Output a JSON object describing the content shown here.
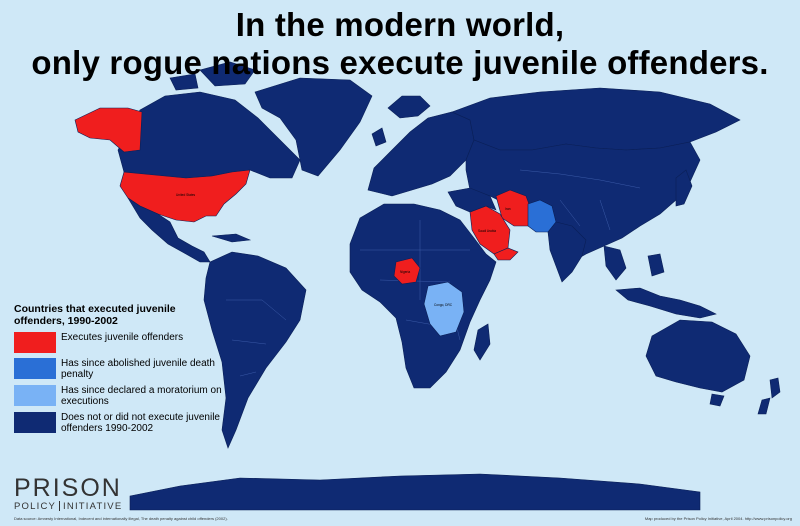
{
  "title": {
    "line1": "In the modern world,",
    "line2": "only rogue nations execute juvenile offenders."
  },
  "colors": {
    "ocean": "#cfe8f7",
    "executes": "#f01e1e",
    "abolished": "#2a6fd6",
    "moratorium": "#79b2f5",
    "not_executing": "#0f2a73"
  },
  "map_labels": {
    "usa": "United States",
    "iran": "Iran",
    "saudi": "Saudi Arabia",
    "nigeria": "Nigeria",
    "drc": "Congo, DRC"
  },
  "legend": {
    "title": "Countries that executed juvenile offenders, 1990-2002",
    "items": [
      {
        "label": "Executes juvenile offenders",
        "color": "#f01e1e"
      },
      {
        "label": "Has since abolished juvenile death penalty",
        "color": "#2a6fd6"
      },
      {
        "label": "Has since declared a moratorium on executions",
        "color": "#79b2f5"
      },
      {
        "label": "Does not or did not execute juvenile offenders 1990-2002",
        "color": "#0f2a73"
      }
    ]
  },
  "logo": {
    "word1": "PRISON",
    "word2": "POLICY",
    "word3": "INITIATIVE"
  },
  "footer": {
    "source": "Data source: Amnesty International, Indecent and internationally illegal, The death penalty against child offenders (2002).",
    "credit": "Map produced by the Prison Policy Initiative, April 2004. http://www.prisonpolicy.org"
  }
}
